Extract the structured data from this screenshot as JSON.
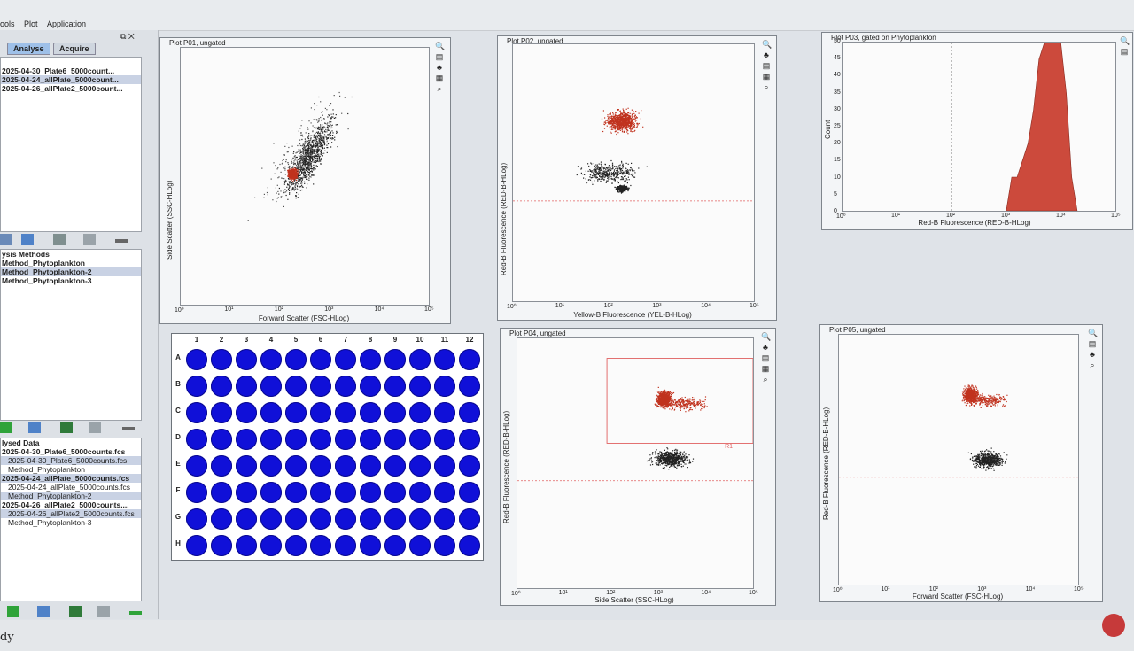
{
  "menu": [
    "ools",
    "Plot",
    "Application"
  ],
  "left_panel": {
    "tabs": [
      "Analyse",
      "Acquire"
    ],
    "files": [
      "2025-04-30_Plate6_5000count...",
      "2025-04-24_allPlate_5000count...",
      "2025-04-26_allPlate2_5000count..."
    ],
    "methods_header": "ysis Methods",
    "methods": [
      "Method_Phytoplankton",
      "Method_Phytoplankton-2",
      "Method_Phytoplankton-3"
    ],
    "data_header": "lysed Data",
    "data": [
      {
        "name": "2025-04-30_Plate6_5000counts.fcs",
        "file": "2025-04-30_Plate6_5000counts.fcs",
        "method": "Method_Phytoplankton"
      },
      {
        "name": "2025-04-24_allPlate_5000counts.fcs",
        "file": "2025-04-24_allPlate_5000counts.fcs",
        "method": "Method_Phytoplankton-2"
      },
      {
        "name": "2025-04-26_allPlate2_5000counts....",
        "file": "2025-04-26_allPlate2_5000counts.fcs",
        "method": "Method_Phytoplankton-3"
      }
    ]
  },
  "plots": {
    "p01": {
      "title": "Plot P01, ungated",
      "xlabel": "Forward Scatter (FSC-HLog)",
      "ylabel": "Side Scatter (SSC-HLog)"
    },
    "p02": {
      "title": "Plot P02, ungated",
      "xlabel": "Yellow-B Fluorescence (YEL-B-HLog)",
      "ylabel": "Red-B Fluorescence (RED-B-HLog)"
    },
    "p03": {
      "title": "Plot P03, gated on Phytoplankton",
      "xlabel": "Red-B Fluorescence (RED-B-HLog)",
      "ylabel": "Count",
      "yticks": [
        "0",
        "5",
        "10",
        "15",
        "20",
        "25",
        "30",
        "35",
        "40",
        "45",
        "50"
      ]
    },
    "p04": {
      "title": "Plot P04, ungated",
      "xlabel": "Side Scatter (SSC-HLog)",
      "ylabel": "Red-B Fluorescence (RED-B-HLog)",
      "gate": "R1"
    },
    "p05": {
      "title": "Plot P05, ungated",
      "xlabel": "Forward Scatter (FSC-HLog)",
      "ylabel": "Red-B Fluorescence (RED-B-HLog)"
    },
    "decades": [
      "10⁰",
      "10¹",
      "10²",
      "10³",
      "10⁴",
      "10⁵"
    ]
  },
  "plate": {
    "columns": [
      "1",
      "2",
      "3",
      "4",
      "5",
      "6",
      "7",
      "8",
      "9",
      "10",
      "11",
      "12"
    ],
    "rows": [
      "A",
      "B",
      "C",
      "D",
      "E",
      "F",
      "G",
      "H"
    ],
    "well_color": "#1010d8"
  },
  "status": "dy",
  "colors": {
    "event_red": "#c0321e",
    "event_black": "#222222",
    "gate": "#e06060"
  }
}
